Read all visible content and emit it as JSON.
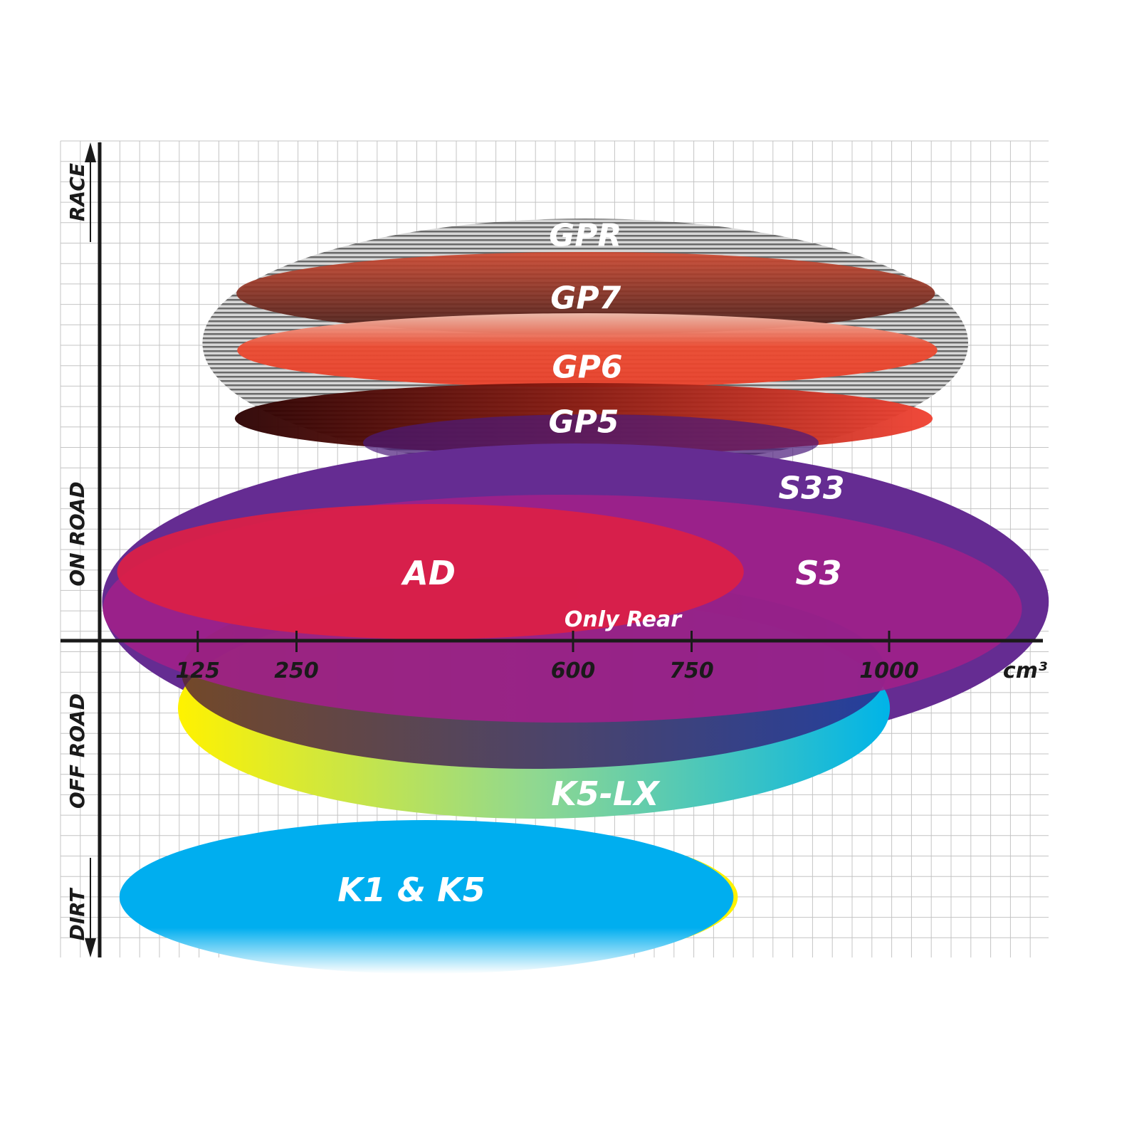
{
  "chart_data": {
    "type": "ellipse-positioning",
    "xlabel": "cm³",
    "x_ticks": [
      125,
      250,
      600,
      750,
      1000
    ],
    "y_labels": {
      "race": "RACE",
      "on_road": "ON ROAD",
      "off_road": "OFF ROAD",
      "dirt": "DIRT"
    },
    "grid": true,
    "series": [
      {
        "name": "GPR",
        "x_range": [
          131,
          1100
        ],
        "colors": [
          "#9a9a9a",
          "#e0e0e0"
        ]
      },
      {
        "name": "GP7",
        "x_range": [
          174,
          1058
        ],
        "colors": [
          "#b8432d",
          "#4a1f18"
        ]
      },
      {
        "name": "GP6",
        "x_range": [
          175,
          1061
        ],
        "colors": [
          "#f0b6a6",
          "#e8402a"
        ]
      },
      {
        "name": "GP5",
        "x_range": [
          172,
          1055
        ],
        "colors": [
          "#3a0000",
          "#f04030"
        ]
      },
      {
        "name": "S33",
        "x_range": [
          4,
          1202
        ],
        "colors": [
          "#652c92"
        ]
      },
      {
        "name": "S3",
        "x_range": [
          5,
          1168
        ],
        "colors": [
          "#a0208a"
        ]
      },
      {
        "name": "AD",
        "x_range": [
          23,
          816
        ],
        "colors": [
          "#dc2045"
        ]
      },
      {
        "name": "K5-LX",
        "x_range": [
          100,
          1001
        ],
        "colors": [
          "#fff200",
          "#00b4e8"
        ]
      },
      {
        "name": "K1 & K5",
        "x_range": [
          26,
          803
        ],
        "colors": [
          "#00aeef"
        ]
      }
    ],
    "annotations": [
      "Only Rear"
    ]
  }
}
